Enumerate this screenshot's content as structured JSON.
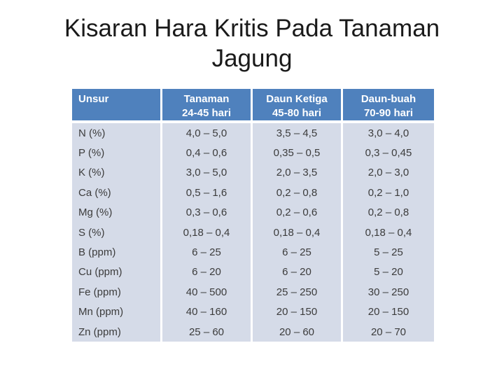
{
  "slide": {
    "title_line1": "Kisaran Hara Kritis Pada Tanaman",
    "title_line2": "Jagung"
  },
  "table": {
    "headers": [
      {
        "line1": "Unsur",
        "line2": ""
      },
      {
        "line1": "Tanaman",
        "line2": "24-45 hari"
      },
      {
        "line1": "Daun Ketiga",
        "line2": "45-80 hari"
      },
      {
        "line1": "Daun-buah",
        "line2": "70-90 hari"
      }
    ],
    "rows": [
      {
        "label": "N (%)",
        "values": [
          "4,0 – 5,0",
          "3,5 – 4,5",
          "3,0 – 4,0"
        ]
      },
      {
        "label": "P (%)",
        "values": [
          "0,4 – 0,6",
          "0,35 – 0,5",
          "0,3 – 0,45"
        ]
      },
      {
        "label": "K (%)",
        "values": [
          "3,0 – 5,0",
          "2,0 – 3,5",
          "2,0 – 3,0"
        ]
      },
      {
        "label": "Ca (%)",
        "values": [
          "0,5 – 1,6",
          "0,2 – 0,8",
          "0,2 – 1,0"
        ]
      },
      {
        "label": "Mg (%)",
        "values": [
          "0,3 – 0,6",
          "0,2 – 0,6",
          "0,2 – 0,8"
        ]
      },
      {
        "label": "S (%)",
        "values": [
          "0,18 – 0,4",
          "0,18 – 0,4",
          "0,18 – 0,4"
        ]
      },
      {
        "label": "B (ppm)",
        "values": [
          "6 – 25",
          "6 – 25",
          "5 – 25"
        ]
      },
      {
        "label": "Cu (ppm)",
        "values": [
          "6 – 20",
          "6 – 20",
          "5 – 20"
        ]
      },
      {
        "label": "Fe (ppm)",
        "values": [
          "40 – 500",
          "25 – 250",
          "30 – 250"
        ]
      },
      {
        "label": "Mn (ppm)",
        "values": [
          "40 – 160",
          "20 – 150",
          "20 – 150"
        ]
      },
      {
        "label": "Zn (ppm)",
        "values": [
          "25 – 60",
          "20 – 60",
          "20 – 70"
        ]
      }
    ],
    "colors": {
      "header_bg": "#4F81BD",
      "body_bg": "#D5DBE8",
      "header_text": "#FFFFFF",
      "body_text": "#3C3C3C"
    }
  }
}
